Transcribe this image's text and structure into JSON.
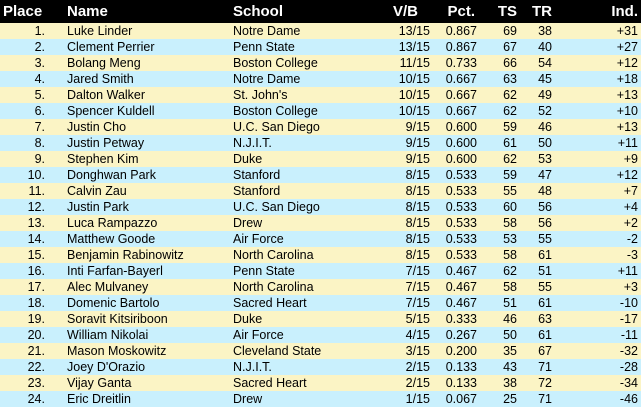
{
  "colors": {
    "header_bg": "#000000",
    "header_text": "#FFFFFF",
    "row_stripe_yellow": "#FBF4C5",
    "row_stripe_cyan": "#C9F0FD",
    "row_text": "#000000"
  },
  "table": {
    "columns": [
      {
        "key": "place",
        "label": "Place"
      },
      {
        "key": "name",
        "label": "Name"
      },
      {
        "key": "school",
        "label": "School"
      },
      {
        "key": "vb",
        "label": "V/B"
      },
      {
        "key": "pct",
        "label": "Pct."
      },
      {
        "key": "ts",
        "label": "TS"
      },
      {
        "key": "tr",
        "label": "TR"
      },
      {
        "key": "ind",
        "label": "Ind."
      }
    ],
    "rows": [
      {
        "place": "1.",
        "name": "Luke Linder",
        "school": "Notre Dame",
        "vb": "13/15",
        "pct": "0.867",
        "ts": "69",
        "tr": "38",
        "ind": "+31"
      },
      {
        "place": "2.",
        "name": "Clement Perrier",
        "school": "Penn State",
        "vb": "13/15",
        "pct": "0.867",
        "ts": "67",
        "tr": "40",
        "ind": "+27"
      },
      {
        "place": "3.",
        "name": "Bolang Meng",
        "school": "Boston College",
        "vb": "11/15",
        "pct": "0.733",
        "ts": "66",
        "tr": "54",
        "ind": "+12"
      },
      {
        "place": "4.",
        "name": "Jared Smith",
        "school": "Notre Dame",
        "vb": "10/15",
        "pct": "0.667",
        "ts": "63",
        "tr": "45",
        "ind": "+18"
      },
      {
        "place": "5.",
        "name": "Dalton Walker",
        "school": "St. John's",
        "vb": "10/15",
        "pct": "0.667",
        "ts": "62",
        "tr": "49",
        "ind": "+13"
      },
      {
        "place": "6.",
        "name": "Spencer Kuldell",
        "school": "Boston College",
        "vb": "10/15",
        "pct": "0.667",
        "ts": "62",
        "tr": "52",
        "ind": "+10"
      },
      {
        "place": "7.",
        "name": "Justin Cho",
        "school": "U.C. San Diego",
        "vb": "9/15",
        "pct": "0.600",
        "ts": "59",
        "tr": "46",
        "ind": "+13"
      },
      {
        "place": "8.",
        "name": "Justin Petway",
        "school": "N.J.I.T.",
        "vb": "9/15",
        "pct": "0.600",
        "ts": "61",
        "tr": "50",
        "ind": "+11"
      },
      {
        "place": "9.",
        "name": "Stephen Kim",
        "school": "Duke",
        "vb": "9/15",
        "pct": "0.600",
        "ts": "62",
        "tr": "53",
        "ind": "+9"
      },
      {
        "place": "10.",
        "name": "Donghwan Park",
        "school": "Stanford",
        "vb": "8/15",
        "pct": "0.533",
        "ts": "59",
        "tr": "47",
        "ind": "+12"
      },
      {
        "place": "11.",
        "name": "Calvin Zau",
        "school": "Stanford",
        "vb": "8/15",
        "pct": "0.533",
        "ts": "55",
        "tr": "48",
        "ind": "+7"
      },
      {
        "place": "12.",
        "name": "Justin Park",
        "school": "U.C. San Diego",
        "vb": "8/15",
        "pct": "0.533",
        "ts": "60",
        "tr": "56",
        "ind": "+4"
      },
      {
        "place": "13.",
        "name": "Luca Rampazzo",
        "school": "Drew",
        "vb": "8/15",
        "pct": "0.533",
        "ts": "58",
        "tr": "56",
        "ind": "+2"
      },
      {
        "place": "14.",
        "name": "Matthew Goode",
        "school": "Air Force",
        "vb": "8/15",
        "pct": "0.533",
        "ts": "53",
        "tr": "55",
        "ind": "-2"
      },
      {
        "place": "15.",
        "name": "Benjamin Rabinowitz",
        "school": "North Carolina",
        "vb": "8/15",
        "pct": "0.533",
        "ts": "58",
        "tr": "61",
        "ind": "-3"
      },
      {
        "place": "16.",
        "name": "Inti Farfan-Bayerl",
        "school": "Penn State",
        "vb": "7/15",
        "pct": "0.467",
        "ts": "62",
        "tr": "51",
        "ind": "+11"
      },
      {
        "place": "17.",
        "name": "Alec Mulvaney",
        "school": "North Carolina",
        "vb": "7/15",
        "pct": "0.467",
        "ts": "58",
        "tr": "55",
        "ind": "+3"
      },
      {
        "place": "18.",
        "name": "Domenic Bartolo",
        "school": "Sacred Heart",
        "vb": "7/15",
        "pct": "0.467",
        "ts": "51",
        "tr": "61",
        "ind": "-10"
      },
      {
        "place": "19.",
        "name": "Soravit Kitsiriboon",
        "school": "Duke",
        "vb": "5/15",
        "pct": "0.333",
        "ts": "46",
        "tr": "63",
        "ind": "-17"
      },
      {
        "place": "20.",
        "name": "William Nikolai",
        "school": "Air Force",
        "vb": "4/15",
        "pct": "0.267",
        "ts": "50",
        "tr": "61",
        "ind": "-11"
      },
      {
        "place": "21.",
        "name": "Mason Moskowitz",
        "school": "Cleveland State",
        "vb": "3/15",
        "pct": "0.200",
        "ts": "35",
        "tr": "67",
        "ind": "-32"
      },
      {
        "place": "22.",
        "name": "Joey D'Orazio",
        "school": "N.J.I.T.",
        "vb": "2/15",
        "pct": "0.133",
        "ts": "43",
        "tr": "71",
        "ind": "-28"
      },
      {
        "place": "23.",
        "name": "Vijay Ganta",
        "school": "Sacred Heart",
        "vb": "2/15",
        "pct": "0.133",
        "ts": "38",
        "tr": "72",
        "ind": "-34"
      },
      {
        "place": "24.",
        "name": "Eric Dreitlin",
        "school": "Drew",
        "vb": "1/15",
        "pct": "0.067",
        "ts": "25",
        "tr": "71",
        "ind": "-46"
      }
    ]
  }
}
